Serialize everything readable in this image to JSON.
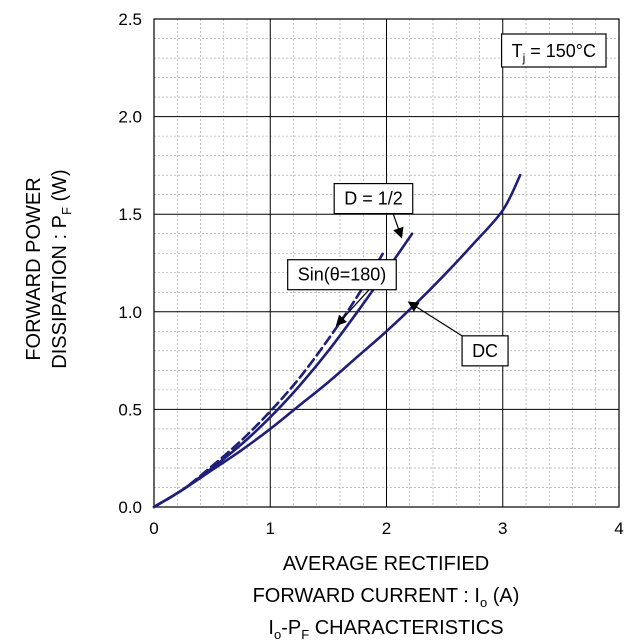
{
  "chart_data": {
    "type": "line",
    "title": "",
    "xlabel": "AVERAGE RECTIFIED FORWARD CURRENT : Io (A)",
    "xlabel_lines": [
      {
        "main": "AVERAGE RECTIFIED",
        "sub": "",
        "tail": ""
      },
      {
        "main": "FORWARD CURRENT : I",
        "sub": "o",
        "tail": " (A)"
      }
    ],
    "ylabel": "FORWARD POWER DISSIPATION : PF (W)",
    "ylabel_lines": [
      {
        "main": "FORWARD POWER",
        "sub": "",
        "tail": ""
      },
      {
        "main": "DISSIPATION : P",
        "sub": "F",
        "tail": " (W)"
      }
    ],
    "caption": {
      "main": "I",
      "sub": "o",
      "mid": "-P",
      "sub2": "F",
      "tail": " CHARACTERISTICS"
    },
    "xlim": [
      0,
      4
    ],
    "ylim": [
      0,
      2.5
    ],
    "x_ticks": [
      "0",
      "1",
      "2",
      "3",
      "4"
    ],
    "y_ticks": [
      "0.0",
      "0.5",
      "1.0",
      "1.5",
      "2.0",
      "2.5"
    ],
    "grid": "major and minor",
    "legend": "none",
    "condition": {
      "main": "T",
      "sub": "j",
      "tail": " = 150°C"
    },
    "series": [
      {
        "name": "DC",
        "style": "solid",
        "x": [
          0,
          0.25,
          0.5,
          0.75,
          1.0,
          1.25,
          1.5,
          1.75,
          2.0,
          2.25,
          2.5,
          2.75,
          3.0,
          3.15
        ],
        "y": [
          0,
          0.09,
          0.19,
          0.29,
          0.4,
          0.52,
          0.64,
          0.77,
          0.9,
          1.04,
          1.19,
          1.35,
          1.52,
          1.7
        ]
      },
      {
        "name": "D = 1/2",
        "style": "solid",
        "x": [
          0,
          0.25,
          0.5,
          0.75,
          1.0,
          1.25,
          1.5,
          1.75,
          2.0,
          2.22
        ],
        "y": [
          0,
          0.09,
          0.2,
          0.32,
          0.46,
          0.62,
          0.8,
          1.0,
          1.21,
          1.4
        ]
      },
      {
        "name": "Sin(θ=180)",
        "style": "dashed",
        "x": [
          0,
          0.25,
          0.5,
          0.75,
          1.0,
          1.25,
          1.5,
          1.75,
          1.98
        ],
        "y": [
          0,
          0.09,
          0.21,
          0.34,
          0.49,
          0.66,
          0.86,
          1.08,
          1.31
        ]
      }
    ],
    "annotations": [
      {
        "text": "D = 1/2",
        "box_x": 1.55,
        "box_y": 1.58,
        "arrow_to": [
          2.13,
          1.38
        ]
      },
      {
        "text": "Sin(θ=180)",
        "box_x": 1.15,
        "box_y": 1.19,
        "arrow_to": [
          1.57,
          0.93
        ]
      },
      {
        "text": "DC",
        "box_x": 2.65,
        "box_y": 0.8,
        "arrow_to": [
          2.19,
          1.05
        ]
      }
    ],
    "line_color": "#1f1f7a"
  }
}
